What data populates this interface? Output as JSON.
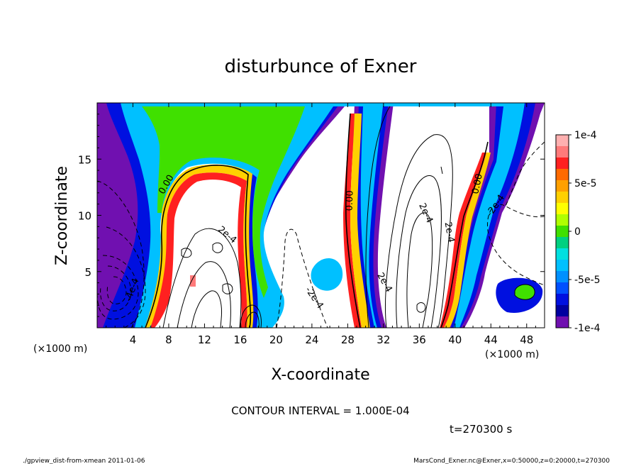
{
  "chart_data": {
    "type": "heatmap",
    "title": "disturbunce of Exner",
    "xlabel": "X-coordinate",
    "ylabel": "Z-coordinate",
    "x_unit": "(×1000 m)",
    "xlim": [
      0,
      50
    ],
    "ylim": [
      0,
      20
    ],
    "x_ticks": [
      4,
      8,
      12,
      16,
      20,
      24,
      28,
      32,
      36,
      40,
      44,
      48
    ],
    "x_tick_labels": [
      "4",
      "8",
      "12",
      "16",
      "20",
      "24",
      "28",
      "32",
      "36",
      "40",
      "44",
      "48"
    ],
    "y_ticks": [
      5,
      10,
      15
    ],
    "y_tick_labels": [
      "5",
      "10",
      "15"
    ],
    "colorbar": {
      "range": [
        -0.0001,
        0.0001
      ],
      "tick_labels": [
        "1e-4",
        "5e-5",
        "0",
        "-5e-5",
        "-1e-4"
      ],
      "tick_values": [
        0.0001,
        5e-05,
        0,
        -5e-05,
        -0.0001
      ],
      "colors": [
        "#ffb0b0",
        "#ff7a7a",
        "#ff2020",
        "#ff6a00",
        "#ffa000",
        "#ffd000",
        "#ffff00",
        "#b0ff00",
        "#40e000",
        "#00d080",
        "#00e0e0",
        "#00c0ff",
        "#0090ff",
        "#0050ff",
        "#0010e0",
        "#0000a0",
        "#7010b0"
      ]
    },
    "contour_labels": [
      "0.00",
      "0.00",
      "0.00",
      "2e-4",
      "2e-4",
      "2e-4",
      "2e-4",
      "-2e-4",
      "-2e-4",
      "4e-4",
      "-4e-4"
    ],
    "contour_interval_text": "CONTOUR INTERVAL = 1.000E-04",
    "time_text": "t=270300  s"
  },
  "footer": {
    "left": "./gpview_dist-from-xmean  2011-01-06",
    "right": "MarsCond_Exner.nc@Exner,x=0:50000,z=0:20000,t=270300"
  }
}
